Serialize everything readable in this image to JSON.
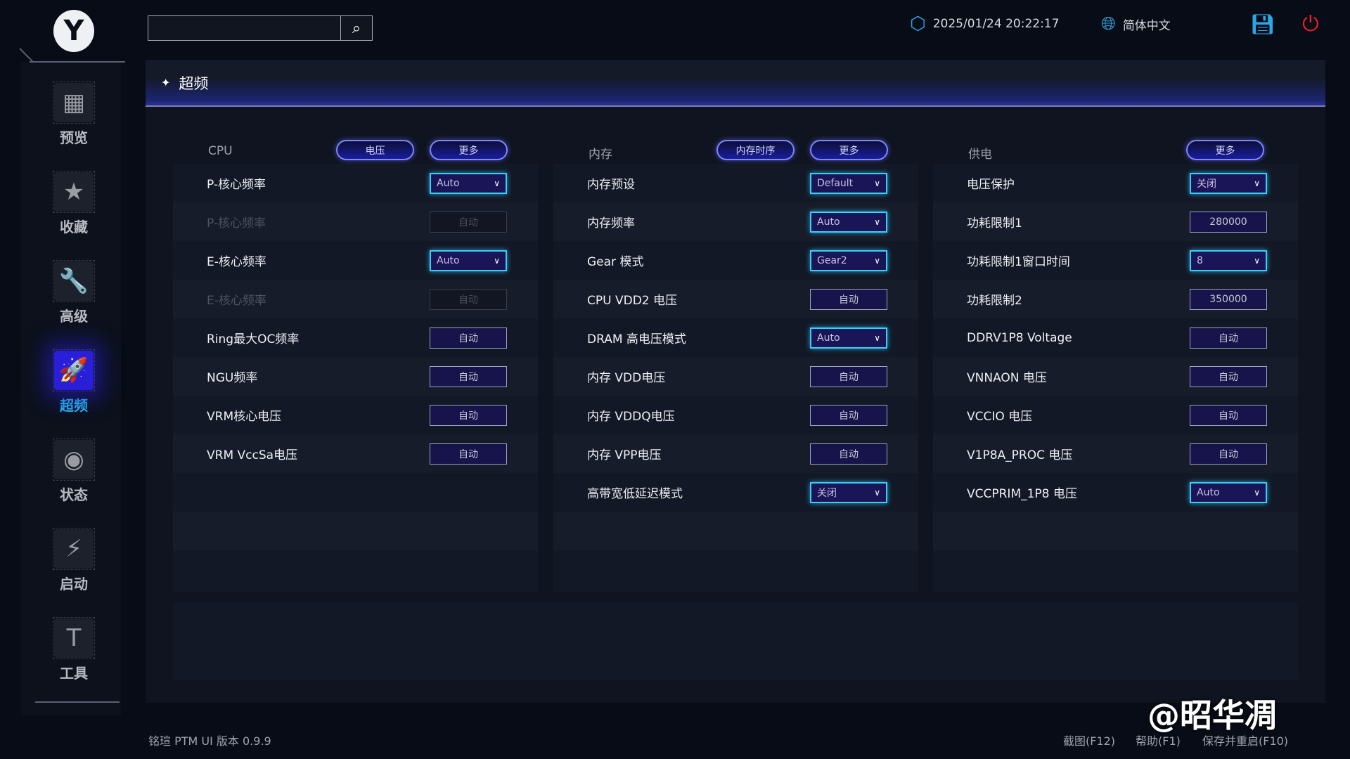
{
  "logo": "Y",
  "sidebar": {
    "items": [
      {
        "label": "预览",
        "icon": "grid-icon",
        "glyph": "▦"
      },
      {
        "label": "收藏",
        "icon": "star-icon",
        "glyph": "★"
      },
      {
        "label": "高级",
        "icon": "wrench-icon",
        "glyph": "🔧"
      },
      {
        "label": "超频",
        "icon": "rocket-icon",
        "glyph": "🚀",
        "active": true
      },
      {
        "label": "状态",
        "icon": "eye-icon",
        "glyph": "◉"
      },
      {
        "label": "启动",
        "icon": "ssd-icon",
        "glyph": "⚡"
      },
      {
        "label": "工具",
        "icon": "hammer-icon",
        "glyph": "T"
      }
    ]
  },
  "search": {
    "value": "",
    "icon": "search-icon"
  },
  "header": {
    "datetime": "2025/01/24 20:22:17",
    "language": "简体中文"
  },
  "colors": {
    "accent": "#36d0ff",
    "active_nav": "#2a1fd8",
    "power": "#e8202a"
  },
  "page": {
    "title": "超频"
  },
  "columns": [
    {
      "title": "CPU",
      "buttons": [
        "电压",
        "更多"
      ],
      "rows": [
        {
          "label": "P-核心频率",
          "value": "Auto",
          "type": "sel"
        },
        {
          "label": "P-核心频率",
          "value": "自动",
          "type": "disabled"
        },
        {
          "label": "E-核心频率",
          "value": "Auto",
          "type": "sel"
        },
        {
          "label": "E-核心频率",
          "value": "自动",
          "type": "disabled"
        },
        {
          "label": "Ring最大OC频率",
          "value": "自动",
          "type": "btn"
        },
        {
          "label": "NGU频率",
          "value": "自动",
          "type": "btn"
        },
        {
          "label": "VRM核心电压",
          "value": "自动",
          "type": "btn"
        },
        {
          "label": "VRM VccSa电压",
          "value": "自动",
          "type": "btn"
        }
      ]
    },
    {
      "title": "内存",
      "buttons": [
        "内存时序",
        "更多"
      ],
      "rows": [
        {
          "label": "内存预设",
          "value": "Default",
          "type": "sel"
        },
        {
          "label": "内存频率",
          "value": "Auto",
          "type": "sel"
        },
        {
          "label": "Gear 模式",
          "value": "Gear2",
          "type": "sel"
        },
        {
          "label": "CPU VDD2 电压",
          "value": "自动",
          "type": "btn"
        },
        {
          "label": "DRAM 高电压模式",
          "value": "Auto",
          "type": "sel"
        },
        {
          "label": "内存 VDD电压",
          "value": "自动",
          "type": "btn"
        },
        {
          "label": "内存 VDDQ电压",
          "value": "自动",
          "type": "btn"
        },
        {
          "label": "内存 VPP电压",
          "value": "自动",
          "type": "btn"
        },
        {
          "label": "高带宽低延迟模式",
          "value": "关闭",
          "type": "sel"
        }
      ]
    },
    {
      "title": "供电",
      "buttons": [
        "更多"
      ],
      "rows": [
        {
          "label": "电压保护",
          "value": "关闭",
          "type": "sel"
        },
        {
          "label": "功耗限制1",
          "value": "280000",
          "type": "btn"
        },
        {
          "label": "功耗限制1窗口时间",
          "value": "8",
          "type": "sel"
        },
        {
          "label": "功耗限制2",
          "value": "350000",
          "type": "btn"
        },
        {
          "label": "DDRV1P8 Voltage",
          "value": "自动",
          "type": "btn"
        },
        {
          "label": "VNNAON 电压",
          "value": "自动",
          "type": "btn"
        },
        {
          "label": "VCCIO 电压",
          "value": "自动",
          "type": "btn"
        },
        {
          "label": "V1P8A_PROC 电压",
          "value": "自动",
          "type": "btn"
        },
        {
          "label": "VCCPRIM_1P8 电压",
          "value": "Auto",
          "type": "sel"
        }
      ]
    }
  ],
  "footer": {
    "version": "铭瑄 PTM UI 版本 0.9.9",
    "screenshot": "截图(F12)",
    "help": "帮助(F1)",
    "save_restart": "保存并重启(F10)"
  },
  "watermark": "@昭华凋"
}
